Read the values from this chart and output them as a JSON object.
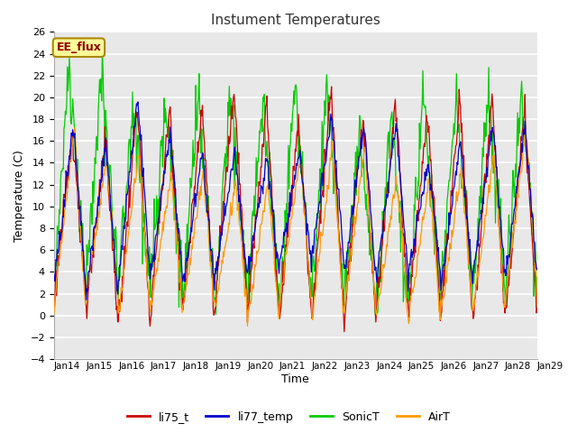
{
  "title": "Instument Temperatures",
  "xlabel": "Time",
  "ylabel": "Temperature (C)",
  "ylim": [
    -4,
    26
  ],
  "colors": {
    "li75_t": "#cc0000",
    "li77_temp": "#0000cc",
    "SonicT": "#00cc00",
    "AirT": "#ff9900"
  },
  "annotation_text": "EE_flux",
  "annotation_bg": "#ffff99",
  "annotation_border": "#aa8800",
  "fig_bg": "#ffffff",
  "plot_bg": "#e8e8e8",
  "grid_color": "#ffffff",
  "x_tick_labels": [
    "Jan 14",
    "Jan 15",
    "Jan 16",
    "Jan 17",
    "Jan 18",
    "Jan 19",
    "Jan 20",
    "Jan 21",
    "Jan 22",
    "Jan 23",
    "Jan 24",
    "Jan 25",
    "Jan 26",
    "Jan 27",
    "Jan 28",
    "Jan 29"
  ],
  "n_days": 15,
  "ppd": 48
}
